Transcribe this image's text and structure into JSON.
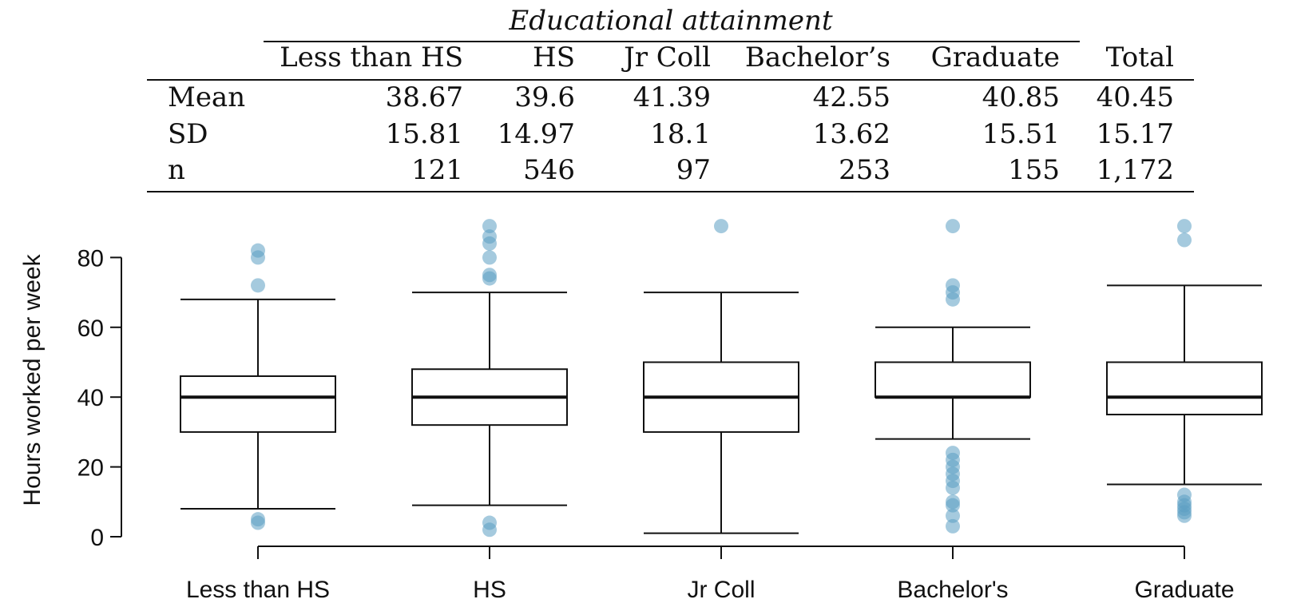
{
  "table": {
    "group_header": "Educational attainment",
    "columns": [
      "Less than HS",
      "HS",
      "Jr Coll",
      "Bachelor’s",
      "Graduate",
      "Total"
    ],
    "rows": [
      {
        "label": "Mean",
        "values": [
          "38.67",
          "39.6",
          "41.39",
          "42.55",
          "40.85",
          "40.45"
        ]
      },
      {
        "label": "SD",
        "values": [
          "15.81",
          "14.97",
          "18.1",
          "13.62",
          "15.51",
          "15.17"
        ]
      },
      {
        "label": "n",
        "values": [
          "121",
          "546",
          "97",
          "253",
          "155",
          "1,172"
        ]
      }
    ]
  },
  "chart_data": {
    "type": "box",
    "ylabel": "Hours worked per week",
    "ylim": [
      0,
      90
    ],
    "yticks": [
      0,
      20,
      40,
      60,
      80
    ],
    "categories": [
      "Less than HS",
      "HS",
      "Jr Coll",
      "Bachelor's",
      "Graduate"
    ],
    "boxes": [
      {
        "category": "Less than HS",
        "whisker_low": 8,
        "q1": 30,
        "median": 40,
        "q3": 46,
        "whisker_high": 68,
        "outliers": [
          4,
          5,
          72,
          80,
          82
        ]
      },
      {
        "category": "HS",
        "whisker_low": 9,
        "q1": 32,
        "median": 40,
        "q3": 48,
        "whisker_high": 70,
        "outliers": [
          2,
          4,
          74,
          75,
          80,
          84,
          86,
          89
        ]
      },
      {
        "category": "Jr Coll",
        "whisker_low": 1,
        "q1": 30,
        "median": 40,
        "q3": 50,
        "whisker_high": 70,
        "outliers": [
          89
        ]
      },
      {
        "category": "Bachelor's",
        "whisker_low": 28,
        "q1": 40,
        "median": 40,
        "q3": 50,
        "whisker_high": 60,
        "outliers": [
          3,
          6,
          9,
          10,
          14,
          16,
          18,
          20,
          22,
          24,
          68,
          70,
          72,
          89
        ]
      },
      {
        "category": "Graduate",
        "whisker_low": 15,
        "q1": 35,
        "median": 40,
        "q3": 50,
        "whisker_high": 72,
        "outliers": [
          6,
          7,
          8,
          9,
          10,
          12,
          85,
          89
        ]
      }
    ],
    "colors": {
      "outlier": "#5b9fc2",
      "box": "#111111"
    },
    "grid": false
  }
}
